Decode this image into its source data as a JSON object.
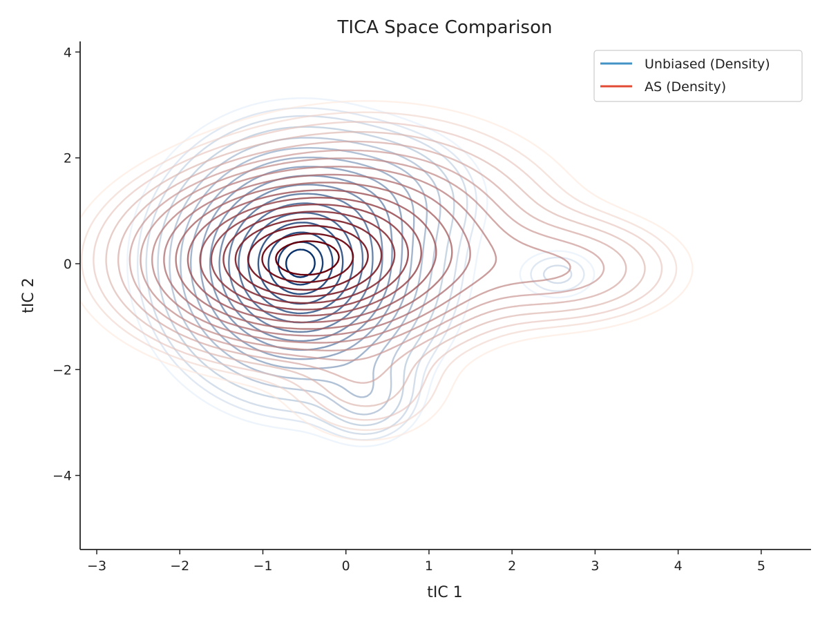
{
  "chart_data": {
    "type": "contour",
    "title": "TICA Space Comparison",
    "xlabel": "tIC 1",
    "ylabel": "tIC 2",
    "xlim": [
      -3.2,
      5.6
    ],
    "ylim": [
      -5.4,
      4.2
    ],
    "xticks": [
      -3,
      -2,
      -1,
      0,
      1,
      2,
      3,
      4,
      5
    ],
    "yticks": [
      -4,
      -2,
      0,
      2,
      4
    ],
    "xtick_labels": [
      "−3",
      "−2",
      "−1",
      "0",
      "1",
      "2",
      "3",
      "4",
      "5"
    ],
    "ytick_labels": [
      "−4",
      "−2",
      "0",
      "2",
      "4"
    ],
    "grid": false,
    "legend_position": "top-right",
    "series": [
      {
        "name": "Unbiased (Density)",
        "legend_color": "#4292c6",
        "colormap": "Blues",
        "color_light": "#deebf7",
        "color_dark": "#08306b",
        "components": [
          {
            "x": -0.55,
            "y": 0.0,
            "sx": 0.7,
            "sy": 1.05,
            "w": 1.0
          },
          {
            "x": 0.25,
            "y": -2.5,
            "sx": 0.32,
            "sy": 0.45,
            "w": 0.09
          },
          {
            "x": 0.5,
            "y": 1.3,
            "sx": 0.55,
            "sy": 0.6,
            "w": 0.1
          },
          {
            "x": 2.55,
            "y": -0.2,
            "sx": 0.3,
            "sy": 0.3,
            "w": 0.035
          }
        ],
        "levels": [
          0.012,
          0.02,
          0.03,
          0.05,
          0.08,
          0.12,
          0.17,
          0.23,
          0.3,
          0.38,
          0.47,
          0.57,
          0.67,
          0.77,
          0.86,
          0.93,
          0.97
        ]
      },
      {
        "name": "AS (Density)",
        "legend_color": "#e34a33",
        "colormap": "Reds",
        "color_light": "#fee5d9",
        "color_dark": "#67000d",
        "components": [
          {
            "x": -0.55,
            "y": 0.05,
            "sx": 0.95,
            "sy": 0.8,
            "w": 1.0
          },
          {
            "x": 0.3,
            "y": 0.7,
            "sx": 1.1,
            "sy": 1.0,
            "w": 0.22
          },
          {
            "x": 2.6,
            "y": -0.1,
            "sx": 0.75,
            "sy": 0.55,
            "w": 0.12
          },
          {
            "x": 0.25,
            "y": -2.3,
            "sx": 0.55,
            "sy": 0.6,
            "w": 0.06
          }
        ],
        "levels": [
          0.012,
          0.02,
          0.03,
          0.045,
          0.065,
          0.09,
          0.12,
          0.16,
          0.21,
          0.27,
          0.34,
          0.42,
          0.5,
          0.59,
          0.68,
          0.77,
          0.86,
          0.93
        ]
      }
    ]
  }
}
